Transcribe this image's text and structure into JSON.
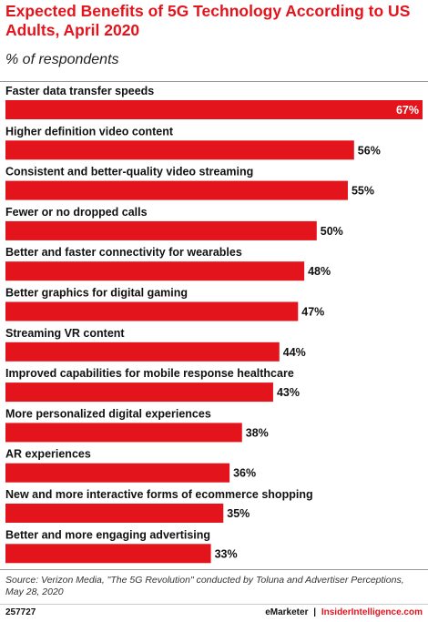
{
  "header": {
    "title": "Expected Benefits of 5G Technology According to US Adults, April 2020",
    "subtitle": "% of respondents"
  },
  "chart_data": {
    "type": "bar",
    "orientation": "horizontal",
    "categories": [
      "Faster data transfer speeds",
      "Higher definition video content",
      "Consistent and better-quality video streaming",
      "Fewer or no dropped calls",
      "Better and faster connectivity for wearables",
      "Better graphics for digital gaming",
      "Streaming VR content",
      "Improved capabilities for mobile response healthcare",
      "More personalized digital experiences",
      "AR experiences",
      "New and more interactive forms of ecommerce shopping",
      "Better and more engaging advertising"
    ],
    "values": [
      67,
      56,
      55,
      50,
      48,
      47,
      44,
      43,
      38,
      36,
      35,
      33
    ],
    "value_labels": [
      "67%",
      "56%",
      "55%",
      "50%",
      "48%",
      "47%",
      "44%",
      "43%",
      "38%",
      "36%",
      "35%",
      "33%"
    ],
    "bar_color": "#e4141c",
    "xlim": [
      0,
      67
    ],
    "grid": false,
    "legend": "none"
  },
  "footer": {
    "source": "Source: Verizon Media, \"The 5G Revolution\" conducted by Toluna and Advertiser Perceptions, May 28, 2020",
    "chart_id": "257727",
    "brand_left": "eMarketer",
    "brand_sep": "|",
    "brand_right": "InsiderIntelligence.com"
  }
}
